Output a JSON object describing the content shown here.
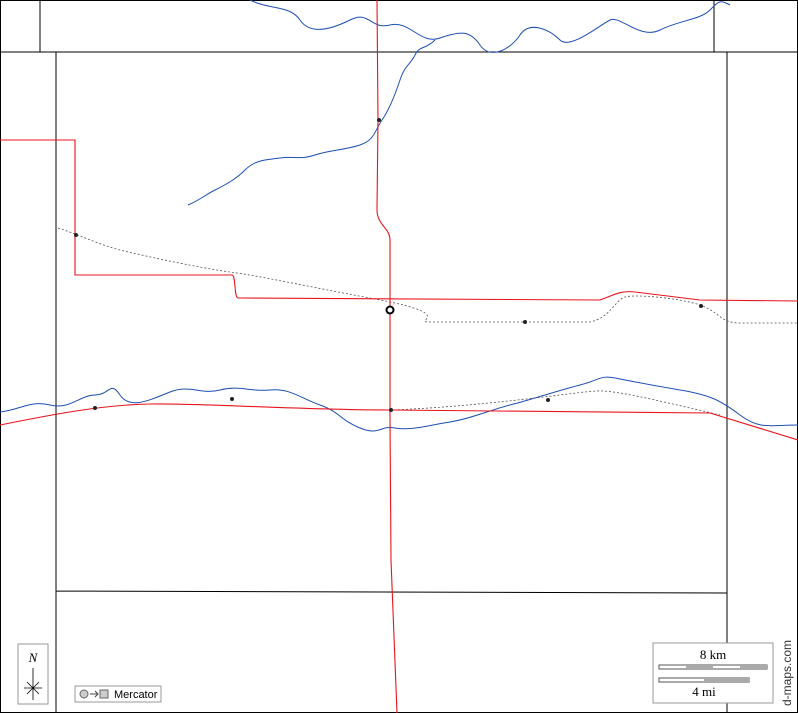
{
  "north": "N",
  "scale": {
    "km": "8 km",
    "mi": "4 mi"
  },
  "projection": "Mercator",
  "credit": "d-maps.com"
}
